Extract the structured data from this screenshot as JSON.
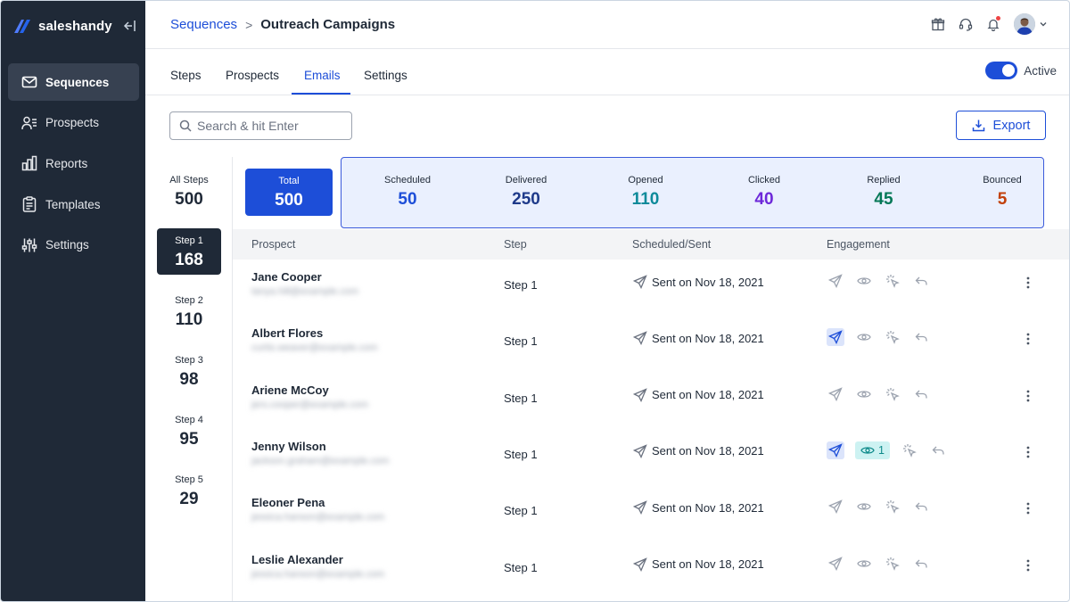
{
  "brand": {
    "name": "saleshandy"
  },
  "sidebar": {
    "items": [
      {
        "label": "Sequences",
        "icon": "mail-icon",
        "active": true
      },
      {
        "label": "Prospects",
        "icon": "users-icon",
        "active": false
      },
      {
        "label": "Reports",
        "icon": "bar-chart-icon",
        "active": false
      },
      {
        "label": "Templates",
        "icon": "clipboard-icon",
        "active": false
      },
      {
        "label": "Settings",
        "icon": "sliders-icon",
        "active": false
      }
    ]
  },
  "header": {
    "breadcrumb_parent": "Sequences",
    "breadcrumb_separator": ">",
    "breadcrumb_current": "Outreach Campaigns"
  },
  "tabs": [
    {
      "label": "Steps",
      "active": false
    },
    {
      "label": "Prospects",
      "active": false
    },
    {
      "label": "Emails",
      "active": true
    },
    {
      "label": "Settings",
      "active": false
    }
  ],
  "status_toggle": {
    "label": "Active",
    "on": true
  },
  "search": {
    "placeholder": "Search & hit Enter",
    "value": ""
  },
  "export": {
    "label": "Export"
  },
  "steps": [
    {
      "label": "All Steps",
      "count": "500",
      "active": false
    },
    {
      "label": "Step 1",
      "count": "168",
      "active": true
    },
    {
      "label": "Step 2",
      "count": "110",
      "active": false
    },
    {
      "label": "Step 3",
      "count": "98",
      "active": false
    },
    {
      "label": "Step 4",
      "count": "95",
      "active": false
    },
    {
      "label": "Step 5",
      "count": "29",
      "active": false
    }
  ],
  "total": {
    "label": "Total",
    "value": "500"
  },
  "stats": [
    {
      "label": "Scheduled",
      "value": "50",
      "color": "#1d4ed8"
    },
    {
      "label": "Delivered",
      "value": "250",
      "color": "#1e3a8a"
    },
    {
      "label": "Opened",
      "value": "110",
      "color": "#0e8a9a"
    },
    {
      "label": "Clicked",
      "value": "40",
      "color": "#6d28d9"
    },
    {
      "label": "Replied",
      "value": "45",
      "color": "#047857"
    },
    {
      "label": "Bounced",
      "value": "5",
      "color": "#c2410c"
    }
  ],
  "table": {
    "headers": {
      "prospect": "Prospect",
      "step": "Step",
      "sent": "Scheduled/Sent",
      "engagement": "Engagement"
    },
    "rows": [
      {
        "name": "Jane Cooper",
        "email": "tanya.hill@example.com",
        "step": "Step 1",
        "sent": "Sent on Nov 18, 2021",
        "delivered_hl": false,
        "opens": ""
      },
      {
        "name": "Albert Flores",
        "email": "curtis.weaver@example.com",
        "step": "Step 1",
        "sent": "Sent on Nov 18, 2021",
        "delivered_hl": true,
        "opens": ""
      },
      {
        "name": "Ariene  McCoy",
        "email": "jers.cooper@example.com",
        "step": "Step 1",
        "sent": "Sent on Nov 18, 2021",
        "delivered_hl": false,
        "opens": ""
      },
      {
        "name": "Jenny Wilson",
        "email": "jackson.graham@example.com",
        "step": "Step 1",
        "sent": "Sent on Nov 18, 2021",
        "delivered_hl": true,
        "opens": "1"
      },
      {
        "name": "Eleoner Pena",
        "email": "jessica.hanson@example.com",
        "step": "Step 1",
        "sent": "Sent on Nov 18, 2021",
        "delivered_hl": false,
        "opens": ""
      },
      {
        "name": "Leslie Alexander",
        "email": "jessica.hanson@example.com",
        "step": "Step 1",
        "sent": "Sent on Nov 18, 2021",
        "delivered_hl": false,
        "opens": ""
      }
    ]
  },
  "colors": {
    "accent": "#1d4ed8",
    "sidebar": "#1f2937",
    "stats_bg": "#eaf0fe"
  }
}
